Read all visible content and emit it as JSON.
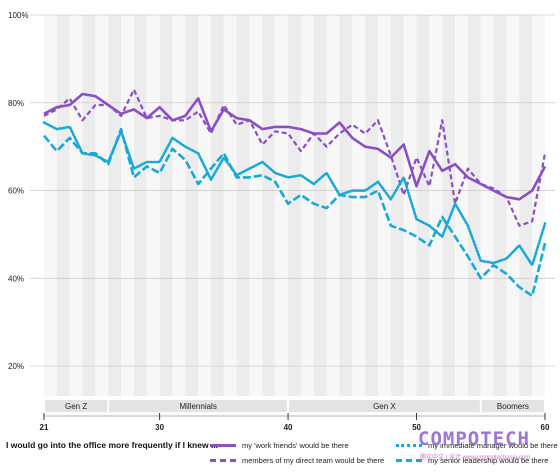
{
  "chart_data": {
    "type": "line",
    "title": "",
    "xlabel": "",
    "ylabel": "",
    "xlim": [
      21,
      60
    ],
    "ylim": [
      10,
      100
    ],
    "y_ticks": [
      "20%",
      "40%",
      "60%",
      "80%",
      "100%"
    ],
    "y_tick_values": [
      20,
      40,
      60,
      80,
      100
    ],
    "x_tick_labels": [
      "21",
      "30",
      "40",
      "50",
      "60"
    ],
    "x_tick_values": [
      21,
      30,
      40,
      50,
      60
    ],
    "x": [
      21,
      22,
      23,
      24,
      25,
      26,
      27,
      28,
      29,
      30,
      31,
      32,
      33,
      34,
      35,
      36,
      37,
      38,
      39,
      40,
      41,
      42,
      43,
      44,
      45,
      46,
      47,
      48,
      49,
      50,
      51,
      52,
      53,
      54,
      55,
      56,
      57,
      58,
      59,
      60
    ],
    "generations": [
      {
        "label": "Gen Z",
        "from": 21,
        "to": 26
      },
      {
        "label": "Millennials",
        "from": 26,
        "to": 40
      },
      {
        "label": "Gen X",
        "from": 40,
        "to": 55
      },
      {
        "label": "Boomers",
        "from": 55,
        "to": 60
      }
    ],
    "legend_title": "I would go into the office more frequently if I knew ...",
    "series": [
      {
        "name": "my 'work friends' would be there",
        "style": "solid",
        "color": "#8a4fc4",
        "values": [
          77.5,
          79,
          79.5,
          82,
          81.5,
          79.5,
          77.5,
          78.5,
          76.5,
          79,
          76,
          77,
          81,
          73.5,
          78.5,
          76.5,
          76,
          74,
          74.5,
          74.5,
          74,
          73,
          73,
          75.5,
          72,
          70,
          69.5,
          67.5,
          70.5,
          61,
          69,
          64.5,
          66,
          63,
          61.5,
          60,
          58.5,
          58,
          60,
          65.5
        ]
      },
      {
        "name": "members of my direct team would be there",
        "style": "dashed",
        "color": "#8a4fc4",
        "values": [
          77,
          78.5,
          81,
          76,
          79.5,
          79.5,
          77,
          83,
          76.5,
          77,
          76,
          76,
          78,
          73,
          79.5,
          75,
          76,
          70.5,
          73.5,
          73,
          69,
          73,
          70,
          73,
          75,
          73,
          76,
          68,
          59,
          67.5,
          61,
          76,
          57,
          65,
          61.5,
          60.5,
          58.5,
          52,
          53,
          68.5
        ]
      },
      {
        "name": "my immediate manager would be there",
        "style": "dotted",
        "color": "#1aa8d6",
        "values": [
          75.5,
          74,
          74.5,
          68.5,
          68,
          66.5,
          73.5,
          65,
          66.5,
          66.5,
          72,
          70,
          68.5,
          62.5,
          67.5,
          63.5,
          65,
          66.5,
          64,
          63,
          63.5,
          61.5,
          64,
          59,
          60,
          60,
          62,
          58,
          63,
          53.5,
          52,
          49.5,
          57,
          52,
          44,
          43.5,
          44.5,
          47.5,
          43,
          52.5
        ]
      },
      {
        "name": "my senior leadership would be there",
        "style": "dashdot",
        "color": "#1aa8d6",
        "values": [
          72.5,
          69,
          72,
          68.5,
          68.5,
          66,
          74,
          63,
          65.5,
          64,
          69.5,
          67,
          61.5,
          65,
          68.5,
          63,
          63,
          63.5,
          62,
          57,
          59,
          57,
          56,
          59,
          58.5,
          58.5,
          60,
          52,
          51,
          49.5,
          47.5,
          54,
          49.5,
          45,
          40,
          43,
          41,
          38,
          36,
          48
        ]
      }
    ]
  },
  "watermark": {
    "text": "COMPOTECH",
    "subtext": "圕实中文 | 设计 www.compotechasia.com"
  }
}
